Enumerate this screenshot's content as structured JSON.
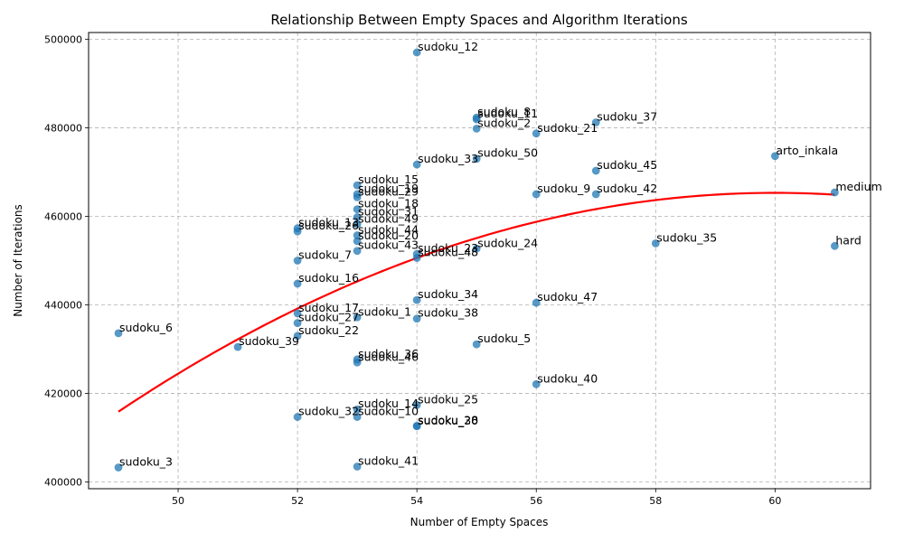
{
  "chart_data": {
    "type": "scatter",
    "title": "Relationship Between Empty Spaces and Algorithm Iterations",
    "xlabel": "Number of Empty Spaces",
    "ylabel": "Number of Iterations",
    "xlim": [
      48.5,
      61.6
    ],
    "ylim": [
      398500,
      501500
    ],
    "xticks": [
      50,
      52,
      54,
      56,
      58,
      60
    ],
    "yticks": [
      400000,
      420000,
      440000,
      460000,
      480000,
      500000
    ],
    "grid": true,
    "point_color": "#1f77b4",
    "fit_color": "#ff0000",
    "fit": {
      "type": "quadratic",
      "x_range": [
        49,
        61
      ],
      "y_start": 415900,
      "y_peak": 465300,
      "x_peak": 60.0,
      "y_end": 465000
    },
    "points": [
      {
        "label": "sudoku_12",
        "x": 54,
        "y": 497000
      },
      {
        "label": "sudoku_8",
        "x": 55,
        "y": 482300
      },
      {
        "label": "sudoku_11",
        "x": 55,
        "y": 481900
      },
      {
        "label": "sudoku_2",
        "x": 55,
        "y": 479800
      },
      {
        "label": "sudoku_37",
        "x": 57,
        "y": 481200
      },
      {
        "label": "sudoku_21",
        "x": 56,
        "y": 478700
      },
      {
        "label": "arto_inkala",
        "x": 60,
        "y": 473600
      },
      {
        "label": "sudoku_50",
        "x": 55,
        "y": 473000
      },
      {
        "label": "sudoku_33",
        "x": 54,
        "y": 471700
      },
      {
        "label": "sudoku_45",
        "x": 57,
        "y": 470300
      },
      {
        "label": "medium",
        "x": 61,
        "y": 465400
      },
      {
        "label": "sudoku_15",
        "x": 53,
        "y": 467000
      },
      {
        "label": "sudoku_19",
        "x": 53,
        "y": 465000
      },
      {
        "label": "sudoku_29",
        "x": 53,
        "y": 464300
      },
      {
        "label": "sudoku_9",
        "x": 56,
        "y": 465000
      },
      {
        "label": "sudoku_42",
        "x": 57,
        "y": 465000
      },
      {
        "label": "sudoku_18",
        "x": 53,
        "y": 461600
      },
      {
        "label": "sudoku_31",
        "x": 53,
        "y": 459800
      },
      {
        "label": "sudoku_49",
        "x": 53,
        "y": 458200
      },
      {
        "label": "sudoku_13",
        "x": 52,
        "y": 457300
      },
      {
        "label": "sudoku_26",
        "x": 52,
        "y": 456600
      },
      {
        "label": "sudoku_44",
        "x": 53,
        "y": 455700
      },
      {
        "label": "sudoku_20",
        "x": 53,
        "y": 454400
      },
      {
        "label": "sudoku_35",
        "x": 58,
        "y": 453900
      },
      {
        "label": "hard",
        "x": 61,
        "y": 453300
      },
      {
        "label": "sudoku_43",
        "x": 53,
        "y": 452200
      },
      {
        "label": "sudoku_24",
        "x": 55,
        "y": 452700
      },
      {
        "label": "sudoku_23",
        "x": 54,
        "y": 451500
      },
      {
        "label": "sudoku_48",
        "x": 54,
        "y": 450600
      },
      {
        "label": "sudoku_7",
        "x": 52,
        "y": 450000
      },
      {
        "label": "sudoku_16",
        "x": 52,
        "y": 444800
      },
      {
        "label": "sudoku_34",
        "x": 54,
        "y": 441100
      },
      {
        "label": "sudoku_47",
        "x": 56,
        "y": 440500
      },
      {
        "label": "sudoku_17",
        "x": 52,
        "y": 438100
      },
      {
        "label": "sudoku_1",
        "x": 53,
        "y": 437200
      },
      {
        "label": "sudoku_38",
        "x": 54,
        "y": 436900
      },
      {
        "label": "sudoku_27",
        "x": 52,
        "y": 435900
      },
      {
        "label": "sudoku_6",
        "x": 49,
        "y": 433600
      },
      {
        "label": "sudoku_22",
        "x": 52,
        "y": 433000
      },
      {
        "label": "sudoku_39",
        "x": 51,
        "y": 430500
      },
      {
        "label": "sudoku_5",
        "x": 55,
        "y": 431100
      },
      {
        "label": "sudoku_36",
        "x": 53,
        "y": 427700
      },
      {
        "label": "sudoku_46",
        "x": 53,
        "y": 427000
      },
      {
        "label": "sudoku_40",
        "x": 56,
        "y": 422100
      },
      {
        "label": "sudoku_25",
        "x": 54,
        "y": 417400
      },
      {
        "label": "sudoku_14",
        "x": 53,
        "y": 416400
      },
      {
        "label": "sudoku_32",
        "x": 52,
        "y": 414700
      },
      {
        "label": "sudoku_10",
        "x": 53,
        "y": 414700
      },
      {
        "label": "sudoku_28",
        "x": 54,
        "y": 412700
      },
      {
        "label": "sudoku_30",
        "x": 54,
        "y": 412600
      },
      {
        "label": "sudoku_3",
        "x": 49,
        "y": 403300
      },
      {
        "label": "sudoku_41",
        "x": 53,
        "y": 403500
      }
    ]
  }
}
